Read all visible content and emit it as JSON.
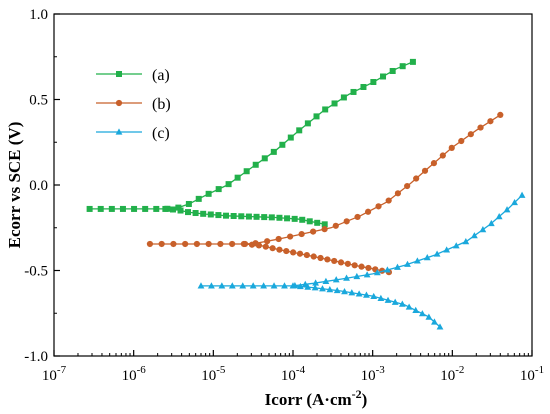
{
  "chart_data": {
    "type": "line",
    "xlabel": "Icorr (A·cm⁻²)",
    "ylabel": "Ecorr vs SCE (V)",
    "x_scale": "log",
    "xlim": [
      1e-07,
      0.1
    ],
    "ylim": [
      -1.0,
      1.0
    ],
    "x_ticks": [
      {
        "value": 1e-07,
        "base": "10",
        "exp": "-7"
      },
      {
        "value": 1e-06,
        "base": "10",
        "exp": "-6"
      },
      {
        "value": 1e-05,
        "base": "10",
        "exp": "-5"
      },
      {
        "value": 0.0001,
        "base": "10",
        "exp": "-4"
      },
      {
        "value": 0.001,
        "base": "10",
        "exp": "-3"
      },
      {
        "value": 0.01,
        "base": "10",
        "exp": "-2"
      },
      {
        "value": 0.1,
        "base": "10",
        "exp": "-1"
      }
    ],
    "y_ticks": [
      {
        "value": 1.0,
        "label": "1.0"
      },
      {
        "value": 0.5,
        "label": "0.5"
      },
      {
        "value": 0.0,
        "label": "0.0"
      },
      {
        "value": -0.5,
        "label": "-0.5"
      },
      {
        "value": -1.0,
        "label": "-1.0"
      }
    ],
    "legend_position": "top-left",
    "grid": false,
    "series": [
      {
        "name": "(a)",
        "color": "#22b04b",
        "marker": "square",
        "branches": [
          [
            [
              2.8e-07,
              -0.14
            ],
            [
              6e-07,
              -0.14
            ],
            [
              1.5e-06,
              -0.14
            ],
            [
              2.5e-06,
              -0.14
            ],
            [
              3.5e-06,
              -0.135
            ],
            [
              5e-06,
              -0.11
            ],
            [
              8e-06,
              -0.06
            ],
            [
              1.5e-05,
              0.0
            ],
            [
              3e-05,
              0.1
            ],
            [
              6e-05,
              0.2
            ],
            [
              0.00012,
              0.32
            ],
            [
              0.00025,
              0.44
            ],
            [
              0.0005,
              0.53
            ],
            [
              0.001,
              0.6
            ],
            [
              0.002,
              0.68
            ],
            [
              0.0032,
              0.72
            ]
          ],
          [
            [
              2.5e-06,
              -0.14
            ],
            [
              3.5e-06,
              -0.145
            ],
            [
              5e-06,
              -0.16
            ],
            [
              8e-06,
              -0.17
            ],
            [
              1.5e-05,
              -0.18
            ],
            [
              3e-05,
              -0.185
            ],
            [
              6e-05,
              -0.19
            ],
            [
              0.00012,
              -0.2
            ],
            [
              0.00025,
              -0.23
            ]
          ]
        ]
      },
      {
        "name": "(b)",
        "color": "#c8602a",
        "marker": "circle",
        "branches": [
          [
            [
              1.6e-06,
              -0.345
            ],
            [
              5e-06,
              -0.345
            ],
            [
              1.5e-05,
              -0.345
            ],
            [
              2.5e-05,
              -0.345
            ],
            [
              3.5e-05,
              -0.34
            ],
            [
              6e-05,
              -0.32
            ],
            [
              0.00012,
              -0.29
            ],
            [
              0.0003,
              -0.25
            ],
            [
              0.0007,
              -0.18
            ],
            [
              0.0015,
              -0.1
            ],
            [
              0.003,
              0.01
            ],
            [
              0.005,
              0.1
            ],
            [
              0.01,
              0.22
            ],
            [
              0.02,
              0.32
            ],
            [
              0.04,
              0.41
            ]
          ],
          [
            [
              2.5e-05,
              -0.345
            ],
            [
              4e-05,
              -0.355
            ],
            [
              7e-05,
              -0.38
            ],
            [
              0.00015,
              -0.41
            ],
            [
              0.0003,
              -0.44
            ],
            [
              0.0006,
              -0.47
            ],
            [
              0.001,
              -0.49
            ],
            [
              0.0016,
              -0.51
            ]
          ]
        ]
      },
      {
        "name": "(c)",
        "color": "#1aa8dc",
        "marker": "triangle",
        "branches": [
          [
            [
              7e-06,
              -0.59
            ],
            [
              2e-05,
              -0.59
            ],
            [
              5e-05,
              -0.59
            ],
            [
              0.0001,
              -0.59
            ],
            [
              0.00018,
              -0.575
            ],
            [
              0.0004,
              -0.55
            ],
            [
              0.001,
              -0.52
            ],
            [
              0.0025,
              -0.47
            ],
            [
              0.006,
              -0.41
            ],
            [
              0.015,
              -0.33
            ],
            [
              0.03,
              -0.23
            ],
            [
              0.05,
              -0.14
            ],
            [
              0.075,
              -0.06
            ]
          ],
          [
            [
              0.0001,
              -0.59
            ],
            [
              0.00018,
              -0.6
            ],
            [
              0.0004,
              -0.62
            ],
            [
              0.001,
              -0.65
            ],
            [
              0.0025,
              -0.7
            ],
            [
              0.005,
              -0.77
            ],
            [
              0.007,
              -0.83
            ]
          ]
        ]
      }
    ]
  }
}
